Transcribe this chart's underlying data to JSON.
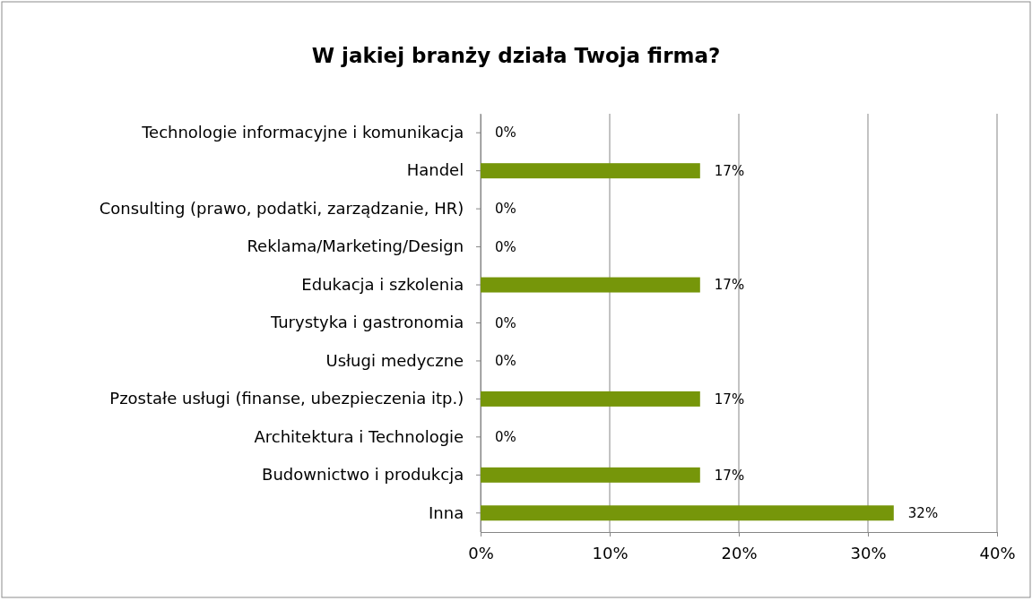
{
  "chart_data": {
    "type": "bar",
    "orientation": "horizontal",
    "title": "W jakiej branży działa Twoja firma?",
    "categories": [
      "Technologie informacyjne i komunikacja",
      "Handel",
      "Consulting (prawo, podatki, zarządzanie, HR)",
      "Reklama/Marketing/Design",
      "Edukacja i szkolenia",
      "Turystyka i gastronomia",
      "Usługi medyczne",
      "Pzostałe usługi (finanse, ubezpieczenia itp.)",
      "Architektura i Technologie",
      "Budownictwo i produkcja",
      "Inna"
    ],
    "values": [
      0,
      17,
      0,
      0,
      17,
      0,
      0,
      17,
      0,
      17,
      32
    ],
    "value_labels": [
      "0%",
      "17%",
      "0%",
      "0%",
      "17%",
      "0%",
      "0%",
      "17%",
      "0%",
      "17%",
      "32%"
    ],
    "color": "#76960a",
    "xlim": [
      0,
      40
    ],
    "xticks": [
      {
        "value": 0,
        "label": "0%"
      },
      {
        "value": 10,
        "label": "10%"
      },
      {
        "value": 20,
        "label": "20%"
      },
      {
        "value": 30,
        "label": "30%"
      },
      {
        "value": 40,
        "label": "40%"
      }
    ],
    "grid": "x"
  }
}
